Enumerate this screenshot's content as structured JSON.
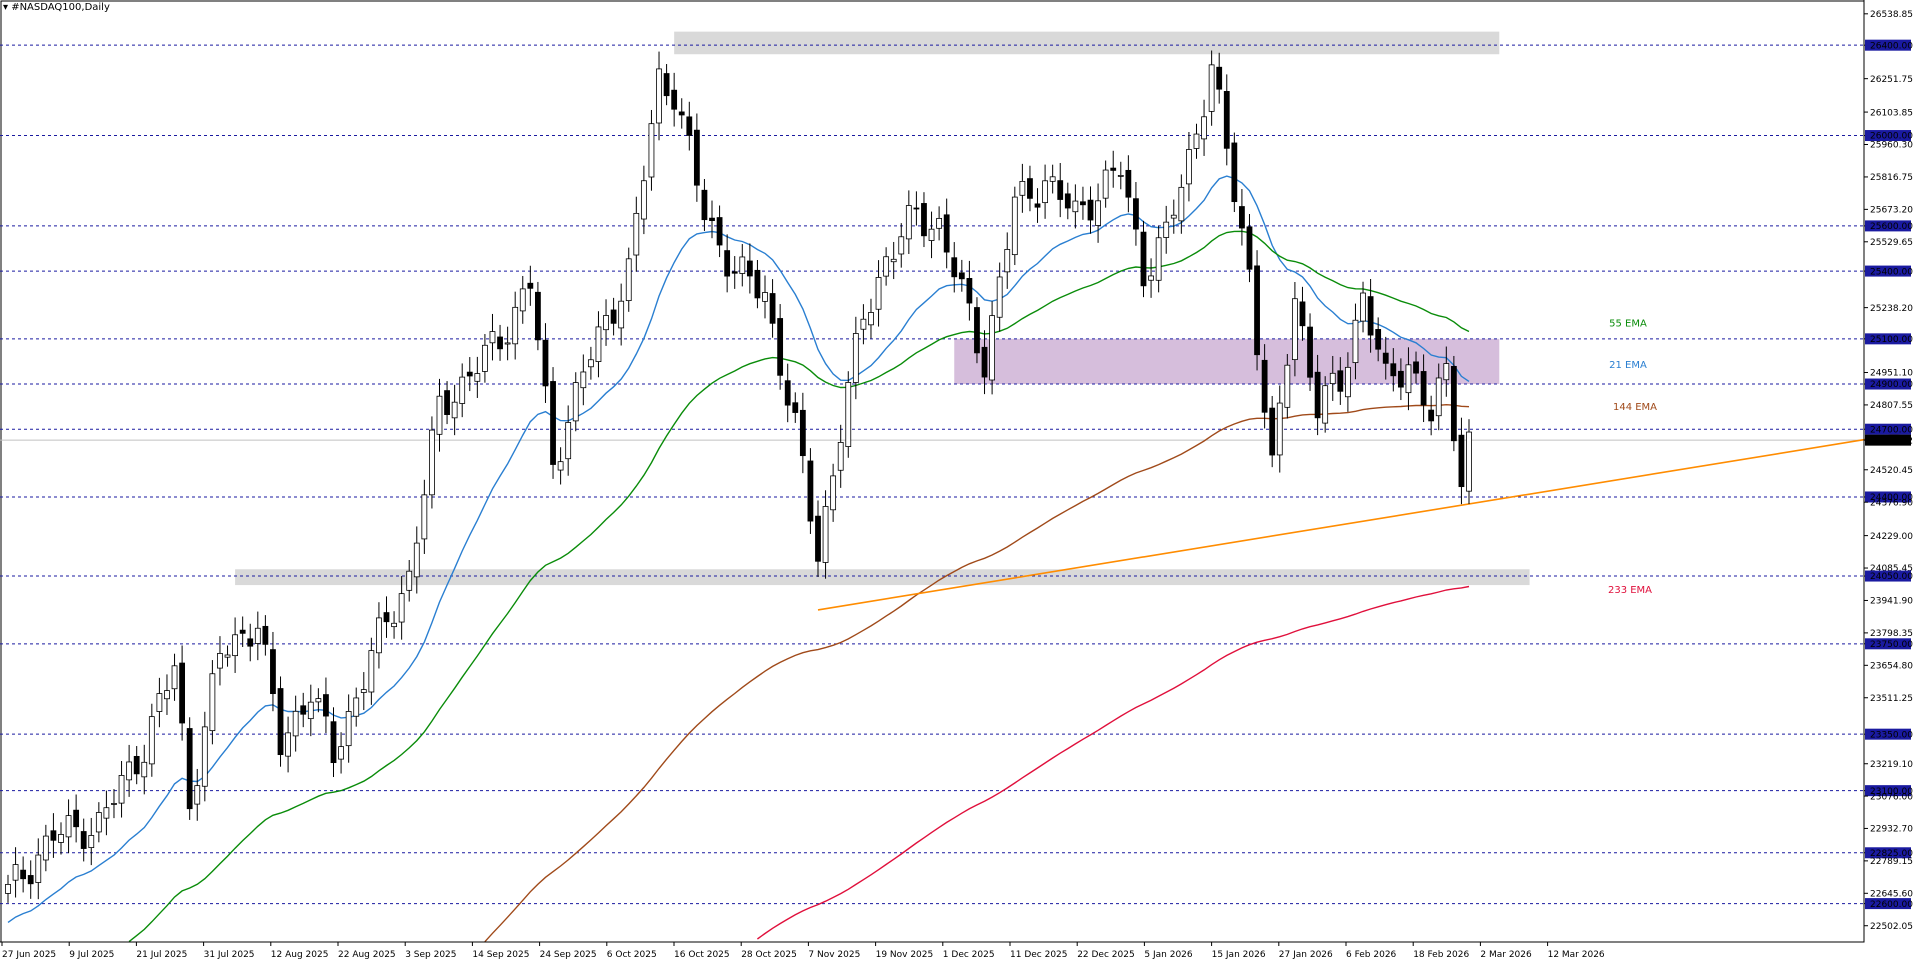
{
  "window": {
    "symbol_label": "▾ #NASDAQ100,Daily"
  },
  "colors": {
    "grid_level": "#1a1aa0",
    "ema21": "#2a7fd1",
    "ema55": "#0a8c0a",
    "ema144": "#a04a1a",
    "ema233": "#e0103c",
    "trendline": "#ff8c00",
    "grey_zone": "#cfcfcf",
    "purple_zone": "#c8a8d0",
    "price_line": "#c0c0c0",
    "candle": "#000000"
  },
  "chart_data": {
    "type": "candlestick",
    "title": "#NASDAQ100,Daily",
    "ylim": [
      22430,
      26600
    ],
    "y_ticks": [
      "26538.85",
      "26400.00",
      "26251.75",
      "26103.85",
      "26000.00",
      "25960.30",
      "25816.75",
      "25673.20",
      "25600.00",
      "25529.65",
      "25400.00",
      "25238.20",
      "25100.00",
      "24951.10",
      "24900.00",
      "24807.55",
      "24700.00",
      "24651.62",
      "24520.45",
      "24400.00",
      "24376.90",
      "24229.00",
      "24085.45",
      "24050.00",
      "23941.90",
      "23798.35",
      "23750.00",
      "23654.80",
      "23511.25",
      "23350.00",
      "23219.10",
      "23100.00",
      "23076.00",
      "22932.70",
      "22825.00",
      "22789.15",
      "22645.60",
      "22600.00",
      "22502.05"
    ],
    "highlighted_levels": [
      "26400.00",
      "26000.00",
      "25600.00",
      "25400.00",
      "25100.00",
      "24900.00",
      "24700.00",
      "24400.00",
      "24050.00",
      "23750.00",
      "23350.00",
      "23100.00",
      "22825.00",
      "22600.00"
    ],
    "current_price": "24651.62",
    "x_labels": [
      "27 Jun 2025",
      "9 Jul 2025",
      "21 Jul 2025",
      "31 Jul 2025",
      "12 Aug 2025",
      "22 Aug 2025",
      "3 Sep 2025",
      "14 Sep 2025",
      "24 Sep 2025",
      "6 Oct 2025",
      "16 Oct 2025",
      "28 Oct 2025",
      "7 Nov 2025",
      "19 Nov 2025",
      "1 Dec 2025",
      "11 Dec 2025",
      "22 Dec 2025",
      "5 Jan 2026",
      "15 Jan 2026",
      "27 Jan 2026",
      "6 Feb 2026",
      "18 Feb 2026",
      "2 Mar 2026",
      "12 Mar 2026"
    ],
    "anchors": [
      {
        "i": 0,
        "c": 22650
      },
      {
        "i": 6,
        "c": 22900
      },
      {
        "i": 12,
        "c": 22950
      },
      {
        "i": 18,
        "c": 23300
      },
      {
        "i": 22,
        "c": 23650
      },
      {
        "i": 24,
        "c": 23050
      },
      {
        "i": 28,
        "c": 23700
      },
      {
        "i": 33,
        "c": 23850
      },
      {
        "i": 36,
        "c": 23300
      },
      {
        "i": 40,
        "c": 23550
      },
      {
        "i": 43,
        "c": 23250
      },
      {
        "i": 48,
        "c": 23700
      },
      {
        "i": 53,
        "c": 24050
      },
      {
        "i": 57,
        "c": 24800
      },
      {
        "i": 60,
        "c": 24900
      },
      {
        "i": 65,
        "c": 25100
      },
      {
        "i": 69,
        "c": 25350
      },
      {
        "i": 72,
        "c": 24550
      },
      {
        "i": 76,
        "c": 24950
      },
      {
        "i": 80,
        "c": 25250
      },
      {
        "i": 82,
        "c": 25400
      },
      {
        "i": 86,
        "c": 26250
      },
      {
        "i": 88,
        "c": 26200
      },
      {
        "i": 92,
        "c": 25650
      },
      {
        "i": 96,
        "c": 25400
      },
      {
        "i": 100,
        "c": 25300
      },
      {
        "i": 104,
        "c": 24700
      },
      {
        "i": 107,
        "c": 24150
      },
      {
        "i": 110,
        "c": 24700
      },
      {
        "i": 113,
        "c": 25200
      },
      {
        "i": 116,
        "c": 25450
      },
      {
        "i": 120,
        "c": 25650
      },
      {
        "i": 123,
        "c": 25600
      },
      {
        "i": 126,
        "c": 25300
      },
      {
        "i": 129,
        "c": 25000
      },
      {
        "i": 133,
        "c": 25700
      },
      {
        "i": 137,
        "c": 25800
      },
      {
        "i": 141,
        "c": 25650
      },
      {
        "i": 144,
        "c": 25750
      },
      {
        "i": 147,
        "c": 25850
      },
      {
        "i": 150,
        "c": 25400
      },
      {
        "i": 153,
        "c": 25550
      },
      {
        "i": 156,
        "c": 25900
      },
      {
        "i": 159,
        "c": 26300
      },
      {
        "i": 162,
        "c": 25750
      },
      {
        "i": 164,
        "c": 25400
      },
      {
        "i": 167,
        "c": 24500
      },
      {
        "i": 170,
        "c": 25300
      },
      {
        "i": 173,
        "c": 24800
      },
      {
        "i": 176,
        "c": 24900
      },
      {
        "i": 179,
        "c": 25300
      },
      {
        "i": 182,
        "c": 24900
      },
      {
        "i": 185,
        "c": 25000
      },
      {
        "i": 188,
        "c": 24750
      },
      {
        "i": 190,
        "c": 24950
      },
      {
        "i": 192,
        "c": 24500
      },
      {
        "i": 193,
        "c": 24650
      }
    ],
    "candle_count": 194,
    "series": [
      {
        "name": "21 EMA",
        "period": 21
      },
      {
        "name": "55 EMA",
        "period": 55
      },
      {
        "name": "144 EMA",
        "period": 144
      },
      {
        "name": "233 EMA",
        "period": 233
      }
    ],
    "trendline": {
      "from": {
        "i": 107,
        "y": 23900
      },
      "to": {
        "i": 250,
        "y": 24680
      }
    },
    "zones": [
      {
        "kind": "grey",
        "i_from": 88,
        "i_to": 197,
        "y_from": 26360,
        "y_to": 26460
      },
      {
        "kind": "grey",
        "i_from": 30,
        "i_to": 201,
        "y_from": 24010,
        "y_to": 24080
      },
      {
        "kind": "purple",
        "i_from": 125,
        "i_to": 197,
        "y_from": 24900,
        "y_to": 25100
      }
    ],
    "annotations": [
      {
        "text": "55 EMA",
        "series": "55 EMA"
      },
      {
        "text": "21 EMA",
        "series": "21 EMA"
      },
      {
        "text": "144 EMA",
        "series": "144 EMA"
      },
      {
        "text": "233 EMA",
        "series": "233 EMA"
      }
    ]
  }
}
